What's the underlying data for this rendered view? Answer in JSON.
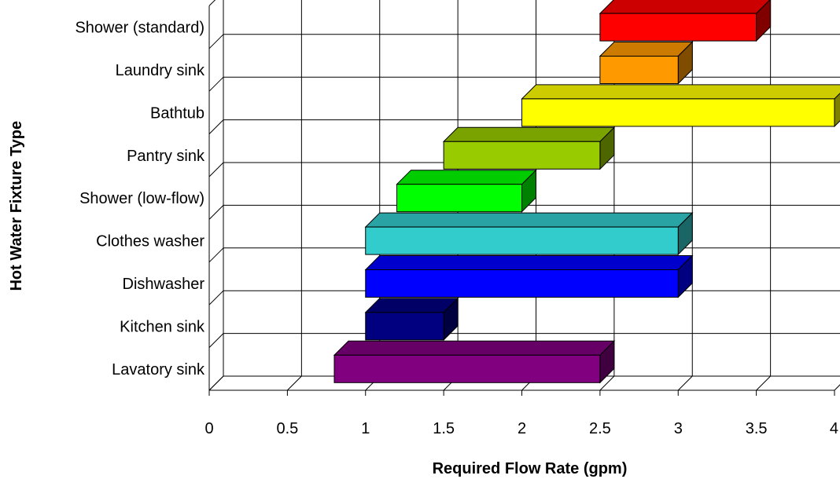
{
  "chart_data": {
    "type": "bar",
    "orientation": "horizontal",
    "style": "3d-floating",
    "xlabel": "Required Flow Rate (gpm)",
    "ylabel": "Hot Water Fixture Type",
    "xlim": [
      0,
      4
    ],
    "xticks": [
      "0",
      "0.5",
      "1",
      "1.5",
      "2",
      "2.5",
      "3",
      "3.5",
      "4"
    ],
    "grid": true,
    "legend": "none",
    "categories": [
      "Lavatory sink",
      "Kitchen sink",
      "Dishwasher",
      "Clothes washer",
      "Shower (low-flow)",
      "Pantry sink",
      "Bathtub",
      "Laundry sink",
      "Shower (standard)"
    ],
    "ranges": [
      {
        "min": 0.8,
        "max": 2.5,
        "color": "#800080"
      },
      {
        "min": 1.0,
        "max": 1.5,
        "color": "#000080"
      },
      {
        "min": 1.0,
        "max": 3.0,
        "color": "#0000FF"
      },
      {
        "min": 1.0,
        "max": 3.0,
        "color": "#33CCCC"
      },
      {
        "min": 1.2,
        "max": 2.0,
        "color": "#00FF00"
      },
      {
        "min": 1.5,
        "max": 2.5,
        "color": "#99CC00"
      },
      {
        "min": 2.0,
        "max": 4.0,
        "color": "#FFFF00"
      },
      {
        "min": 2.5,
        "max": 3.0,
        "color": "#FF9900"
      },
      {
        "min": 2.5,
        "max": 3.5,
        "color": "#FF0000"
      }
    ]
  }
}
